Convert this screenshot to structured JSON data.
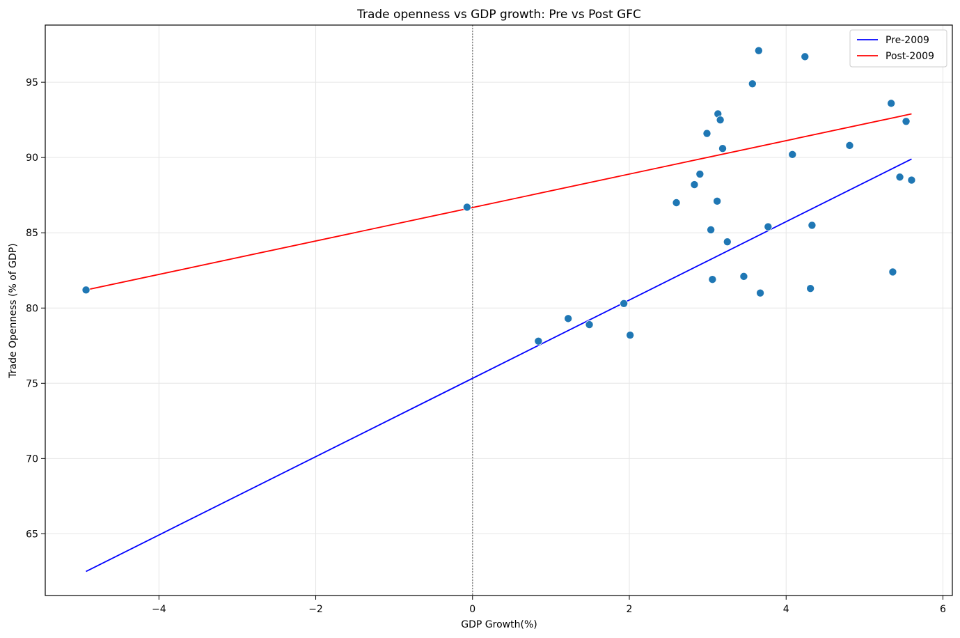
{
  "chart_data": {
    "type": "scatter",
    "title": "Trade openness vs GDP growth: Pre vs Post GFC",
    "xlabel": "GDP Growth(%)",
    "ylabel": "Trade Openness (% of GDP)",
    "xlim": [
      -5.45,
      6.12
    ],
    "ylim": [
      60.9,
      98.8
    ],
    "xticks": [
      -4,
      -2,
      0,
      2,
      4,
      6
    ],
    "yticks": [
      65,
      70,
      75,
      80,
      85,
      90,
      95
    ],
    "xtick_labels": [
      "−4",
      "−2",
      "0",
      "2",
      "4",
      "6"
    ],
    "ytick_labels": [
      "65",
      "70",
      "75",
      "80",
      "85",
      "90",
      "95"
    ],
    "grid": true,
    "vline_x": 0,
    "legend_position": "top-right",
    "points": {
      "color": "#1f77b4",
      "x": [
        -4.93,
        -0.07,
        0.84,
        1.22,
        1.49,
        1.93,
        2.01,
        2.6,
        2.83,
        2.9,
        2.99,
        3.04,
        3.06,
        3.12,
        3.13,
        3.16,
        3.19,
        3.25,
        3.46,
        3.57,
        3.65,
        3.67,
        3.77,
        4.08,
        4.24,
        4.31,
        4.33,
        4.81,
        5.34,
        5.36,
        5.45,
        5.53,
        5.6
      ],
      "y": [
        81.2,
        86.7,
        77.8,
        79.3,
        78.9,
        80.3,
        78.2,
        87.0,
        88.2,
        88.9,
        91.6,
        85.2,
        81.9,
        87.1,
        92.9,
        92.5,
        90.6,
        84.4,
        82.1,
        94.9,
        97.1,
        81.0,
        85.4,
        90.2,
        96.7,
        81.3,
        85.5,
        90.8,
        93.6,
        82.4,
        88.7,
        92.4,
        88.5
      ]
    },
    "series": [
      {
        "name": "Pre-2009",
        "color": "#0000ff",
        "x": [
          -4.93,
          5.6
        ],
        "y": [
          62.5,
          89.9
        ]
      },
      {
        "name": "Post-2009",
        "color": "#ff0000",
        "x": [
          -4.93,
          5.6
        ],
        "y": [
          81.2,
          92.9
        ]
      }
    ]
  }
}
